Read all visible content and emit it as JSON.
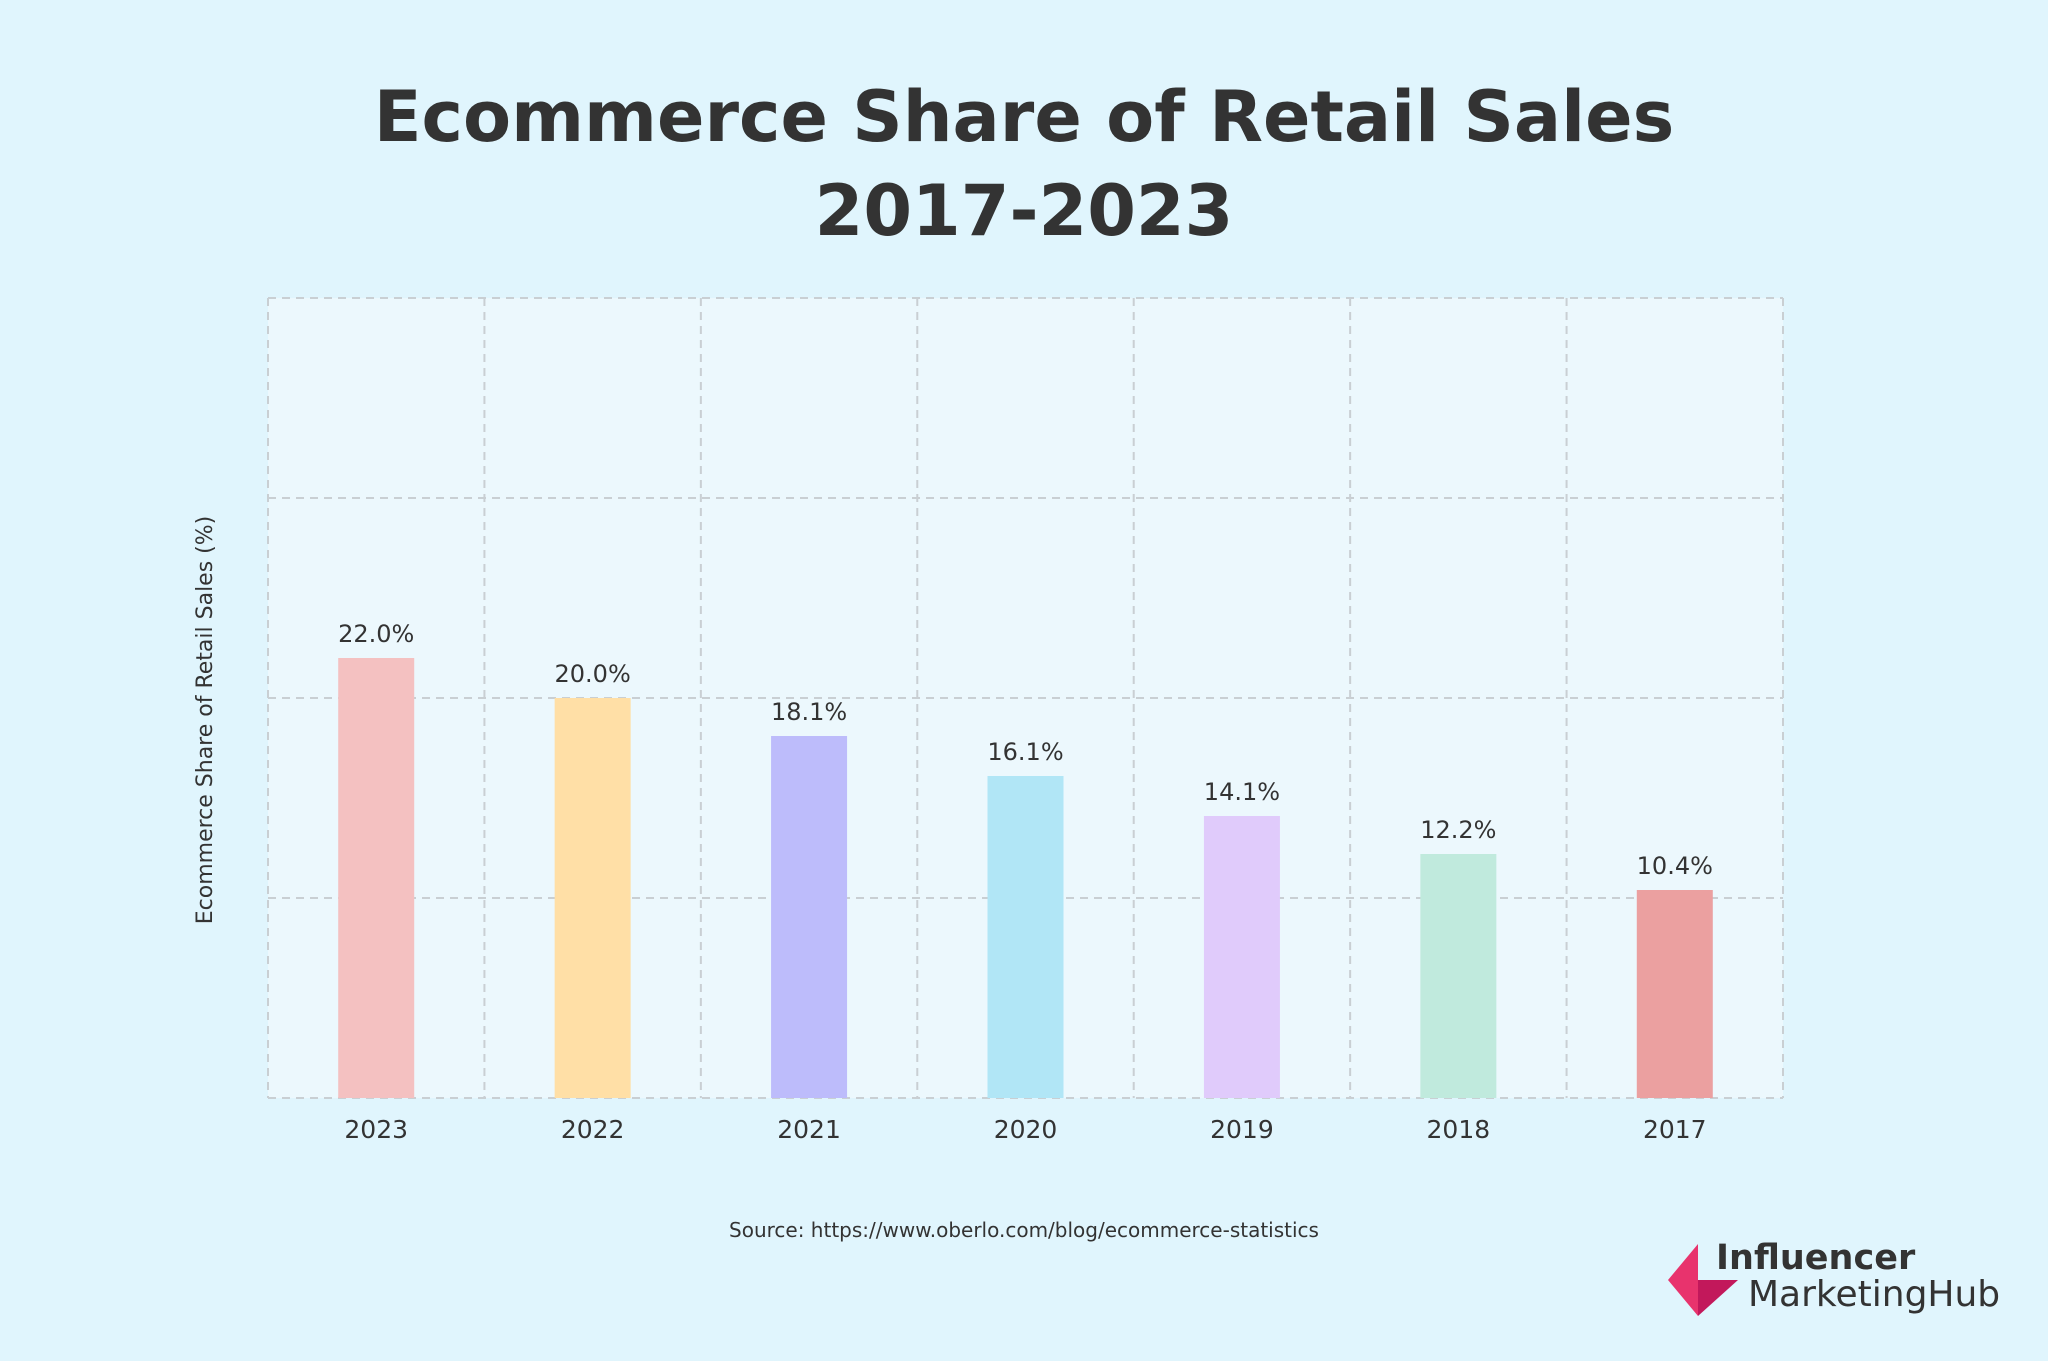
{
  "title": {
    "line1": "Ecommerce Share of Retail Sales",
    "line2": "2017-2023"
  },
  "source": "Source: https://www.oberlo.com/blog/ecommerce-statistics",
  "logo": {
    "word1": "Influencer",
    "word2": "MarketingHub",
    "mark_colors": [
      "#e8336d",
      "#c2185b"
    ]
  },
  "chart_data": {
    "type": "bar",
    "title": "Ecommerce Share of Retail Sales 2017-2023",
    "xlabel": "",
    "ylabel": "Ecommerce Share of Retail Sales  (%)",
    "categories": [
      "2023",
      "2022",
      "2021",
      "2020",
      "2019",
      "2018",
      "2017"
    ],
    "values": [
      22.0,
      20.0,
      18.1,
      16.1,
      14.1,
      12.2,
      10.4
    ],
    "data_labels": [
      "22.0%",
      "20.0%",
      "18.1%",
      "16.1%",
      "14.1%",
      "12.2%",
      "10.4%"
    ],
    "colors": [
      "#f4c1c1",
      "#ffdfa6",
      "#bdbcfb",
      "#b1e6f6",
      "#e0cbfb",
      "#c0eadd",
      "#eba0a0"
    ],
    "ylim": [
      0,
      40
    ],
    "y_gridlines": [
      0,
      10,
      20,
      30,
      40
    ],
    "grid": true,
    "grid_style": "dashed",
    "plot_background": "#ecf8fd"
  }
}
